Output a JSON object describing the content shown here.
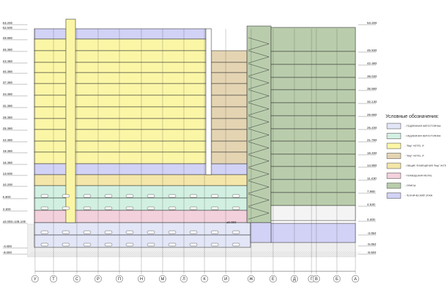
{
  "left_levels": [
    "53.200",
    "52.500",
    "49.880",
    "46.380",
    "43.380",
    "40.380",
    "37.380",
    "34.380",
    "31.380",
    "28.380",
    "25.380",
    "22.380",
    "19.380",
    "16.380",
    "13.600",
    "10.200",
    "6.800",
    "3.300",
    "±0.000=135.100",
    "-4.600",
    "-8.600"
  ],
  "right_levels": [
    "53.200",
    "45.930",
    "42.480",
    "39.030",
    "35.580",
    "32.130",
    "28.680",
    "25.230",
    "21.780",
    "18.330",
    "14.880",
    "11.430",
    "7.980",
    "4.530",
    "0.400",
    "-3.050",
    "-6.050",
    "-8.600"
  ],
  "axes": [
    "У",
    "Т",
    "С",
    "Р",
    "П",
    "Н",
    "М",
    "Л",
    "К",
    "И",
    "Ж",
    "Е",
    "Д",
    "Г",
    "В",
    "Б",
    "А"
  ],
  "legend": {
    "title": "Условные обозначения:",
    "items": [
      {
        "label": "- ПОДЗЕМНАЯ АВТОСТОЯНКА",
        "color": "#e2e6f6"
      },
      {
        "label": "- НАДЗЕМНАЯ АВТОСТОЯНКА",
        "color": "#d2f0e2"
      },
      {
        "label": "- \"Bay\" HOTEL 3*",
        "color": "#fbf6a6"
      },
      {
        "label": "- \"Bay\" HOTEL 3*",
        "color": "#e4d4b2"
      },
      {
        "label": "- ОБЩИЕ ПОМЕЩЕНИЯ \"Bay\" HOTEL И \"Day\" HOTEL 3*",
        "color": "#f3e6a8"
      },
      {
        "label": "- ПОМЕЩЕНИЯ RETAIL",
        "color": "#f2d0dc"
      },
      {
        "label": "- ОФИСЫ",
        "color": "#b9cdac"
      },
      {
        "label": "- ТЕХНИЧЕСКИЙ ЭТАЖ",
        "color": "#d2d2f6"
      }
    ]
  },
  "zero_mark": "±0.000"
}
